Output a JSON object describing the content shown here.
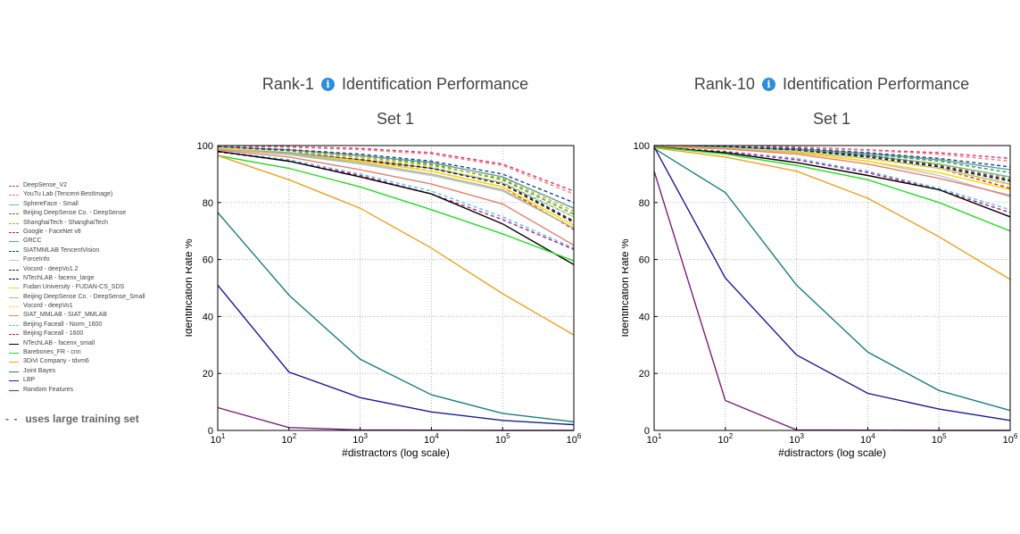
{
  "legend": {
    "items": [
      {
        "label": "DeepSense_V2",
        "color": "#e0347a",
        "dash": true
      },
      {
        "label": "YouTu Lab (Tencent-BestImage)",
        "color": "#f08080",
        "dash": true
      },
      {
        "label": "SphereFace - Small",
        "color": "#6baed6",
        "dash": false
      },
      {
        "label": "Beijing DeepSense Co. - DeepSense",
        "color": "#2ca02c",
        "dash": true
      },
      {
        "label": "ShanghaiTech - ShanghaiTech",
        "color": "#c8b400",
        "dash": true
      },
      {
        "label": "Google - FaceNet v8",
        "color": "#d62728",
        "dash": true
      },
      {
        "label": "GRCC",
        "color": "#5f9ea0",
        "dash": false
      },
      {
        "label": "SIATMMLAB TencentVision",
        "color": "#1f3f8f",
        "dash": true
      },
      {
        "label": "ForceInfo",
        "color": "#b0c4de",
        "dash": false
      },
      {
        "label": "Vocord - deepVo1.2",
        "color": "#333366",
        "dash": true
      },
      {
        "label": "NTechLAB - facenx_large",
        "color": "#111111",
        "dash": true
      },
      {
        "label": "Fudan University - FUDAN-CS_SDS",
        "color": "#ffd700",
        "dash": false
      },
      {
        "label": "Beijing DeepSense Co. - DeepSense_Small",
        "color": "#b8b878",
        "dash": false
      },
      {
        "label": "Vocord - deepVo1",
        "color": "#f5e050",
        "dash": true
      },
      {
        "label": "SIAT_MMLAB - SIAT_MMLAB",
        "color": "#e8806a",
        "dash": false
      },
      {
        "label": "Beijing Faceall - Norm_1600",
        "color": "#4fc3f7",
        "dash": true
      },
      {
        "label": "Beijing Faceall - 1600",
        "color": "#c71585",
        "dash": true
      },
      {
        "label": "NTechLAB - facenx_small",
        "color": "#000000",
        "dash": false
      },
      {
        "label": "Barebones_FR - cnn",
        "color": "#22dd22",
        "dash": false
      },
      {
        "label": "3DiVi Company - tdvm6",
        "color": "#f0a020",
        "dash": false
      },
      {
        "label": "Joint Bayes",
        "color": "#1a8080",
        "dash": false
      },
      {
        "label": "LBP",
        "color": "#1a1a9a",
        "dash": false
      },
      {
        "label": "Random Features",
        "color": "#7a1f7a",
        "dash": false
      }
    ],
    "note_dash": "- -",
    "note_text": "uses large training set"
  },
  "charts": [
    {
      "title_before": "Rank-1",
      "title_after": "Identification Performance",
      "subtitle": "Set 1",
      "info_icon": "info-icon"
    },
    {
      "title_before": "Rank-10",
      "title_after": "Identification Performance",
      "subtitle": "Set 1",
      "info_icon": "info-icon"
    }
  ],
  "chart_data": [
    {
      "type": "line",
      "title": "Rank-1 Identification Performance",
      "subtitle": "Set 1",
      "xlabel": "#distractors (log scale)",
      "ylabel": "Identification Rate %",
      "x_scale": "log",
      "x": [
        10,
        100,
        1000,
        10000,
        100000,
        1000000
      ],
      "x_tick_labels": [
        [
          "10",
          "1"
        ],
        [
          "10",
          "2"
        ],
        [
          "10",
          "3"
        ],
        [
          "10",
          "4"
        ],
        [
          "10",
          "5"
        ],
        [
          "10",
          "6"
        ]
      ],
      "y_ticks": [
        0,
        20,
        40,
        60,
        80,
        100
      ],
      "ylim": [
        0,
        100
      ],
      "grid": true,
      "series": [
        {
          "name": "DeepSense_V2",
          "color": "#e0347a",
          "dash": true,
          "values": [
            99.8,
            99.6,
            99.0,
            97.5,
            93.5,
            84.0
          ]
        },
        {
          "name": "YouTu Lab (Tencent-BestImage)",
          "color": "#f08080",
          "dash": true,
          "values": [
            99.7,
            99.4,
            98.6,
            97.0,
            93.0,
            83.0
          ]
        },
        {
          "name": "SphereFace - Small",
          "color": "#6baed6",
          "dash": false,
          "values": [
            99.0,
            97.5,
            95.0,
            92.0,
            87.0,
            75.0
          ]
        },
        {
          "name": "Beijing DeepSense Co. - DeepSense",
          "color": "#2ca02c",
          "dash": true,
          "values": [
            99.5,
            98.5,
            96.5,
            93.5,
            88.0,
            76.0
          ]
        },
        {
          "name": "ShanghaiTech - ShanghaiTech",
          "color": "#c8b400",
          "dash": true,
          "values": [
            99.4,
            98.2,
            96.0,
            93.0,
            88.5,
            77.0
          ]
        },
        {
          "name": "Google - FaceNet v8",
          "color": "#d62728",
          "dash": true,
          "values": [
            99.3,
            97.8,
            95.0,
            91.0,
            85.5,
            70.5
          ]
        },
        {
          "name": "GRCC",
          "color": "#5f9ea0",
          "dash": false,
          "values": [
            99.6,
            98.5,
            96.5,
            94.0,
            89.0,
            78.0
          ]
        },
        {
          "name": "SIATMMLAB TencentVision",
          "color": "#1f3f8f",
          "dash": true,
          "values": [
            99.5,
            98.6,
            97.0,
            94.5,
            90.0,
            80.0
          ]
        },
        {
          "name": "ForceInfo",
          "color": "#b0c4de",
          "dash": false,
          "values": [
            98.8,
            96.8,
            93.5,
            89.5,
            84.0,
            71.0
          ]
        },
        {
          "name": "Vocord - deepVo1.2",
          "color": "#333366",
          "dash": true,
          "values": [
            99.4,
            98.0,
            95.5,
            92.5,
            87.0,
            73.5
          ]
        },
        {
          "name": "NTechLAB - facenx_large",
          "color": "#111111",
          "dash": true,
          "values": [
            99.2,
            97.8,
            95.2,
            92.0,
            86.5,
            73.0
          ]
        },
        {
          "name": "Fudan University - FUDAN-CS_SDS",
          "color": "#ffd700",
          "dash": false,
          "values": [
            99.0,
            97.0,
            94.5,
            91.0,
            85.5,
            72.0
          ]
        },
        {
          "name": "Beijing DeepSense Co. - DeepSense_Small",
          "color": "#b8b878",
          "dash": false,
          "values": [
            98.8,
            97.0,
            94.0,
            90.0,
            84.5,
            71.0
          ]
        },
        {
          "name": "Vocord - deepVo1",
          "color": "#f5e050",
          "dash": true,
          "values": [
            99.2,
            97.8,
            95.5,
            92.5,
            87.0,
            75.0
          ]
        },
        {
          "name": "SIAT_MMLAB - SIAT_MMLAB",
          "color": "#e8806a",
          "dash": false,
          "values": [
            98.5,
            96.0,
            91.5,
            86.5,
            79.5,
            65.0
          ]
        },
        {
          "name": "Beijing Faceall - Norm_1600",
          "color": "#4fc3f7",
          "dash": true,
          "values": [
            98.0,
            95.0,
            90.0,
            84.0,
            75.0,
            64.0
          ]
        },
        {
          "name": "Beijing Faceall - 1600",
          "color": "#c71585",
          "dash": true,
          "values": [
            97.8,
            94.5,
            89.5,
            83.0,
            74.0,
            63.5
          ]
        },
        {
          "name": "NTechLAB - facenx_small",
          "color": "#000000",
          "dash": false,
          "values": [
            98.0,
            94.5,
            89.0,
            83.0,
            72.5,
            58.2
          ]
        },
        {
          "name": "Barebones_FR - cnn",
          "color": "#22dd22",
          "dash": false,
          "values": [
            96.5,
            92.0,
            85.5,
            77.5,
            69.0,
            59.5
          ]
        },
        {
          "name": "3DiVi Company - tdvm6",
          "color": "#f0a020",
          "dash": false,
          "values": [
            96.5,
            88.0,
            78.0,
            64.0,
            48.0,
            33.5
          ]
        },
        {
          "name": "Joint Bayes",
          "color": "#1a8080",
          "dash": false,
          "values": [
            76.5,
            47.5,
            25.0,
            12.5,
            6.0,
            3.0
          ]
        },
        {
          "name": "LBP",
          "color": "#1a1a9a",
          "dash": false,
          "values": [
            51.0,
            20.5,
            11.5,
            6.5,
            3.5,
            2.0
          ]
        },
        {
          "name": "Random Features",
          "color": "#7a1f7a",
          "dash": false,
          "values": [
            8.0,
            1.0,
            0.2,
            0.1,
            0.0,
            0.0
          ]
        }
      ]
    },
    {
      "type": "line",
      "title": "Rank-10 Identification Performance",
      "subtitle": "Set 1",
      "xlabel": "#distractors (log scale)",
      "ylabel": "Identification Rate %",
      "x_scale": "log",
      "x": [
        10,
        100,
        1000,
        10000,
        100000,
        1000000
      ],
      "x_tick_labels": [
        [
          "10",
          "1"
        ],
        [
          "10",
          "2"
        ],
        [
          "10",
          "3"
        ],
        [
          "10",
          "4"
        ],
        [
          "10",
          "5"
        ],
        [
          "10",
          "6"
        ]
      ],
      "y_ticks": [
        0,
        20,
        40,
        60,
        80,
        100
      ],
      "ylim": [
        0,
        100
      ],
      "grid": true,
      "series": [
        {
          "name": "DeepSense_V2",
          "color": "#e0347a",
          "dash": true,
          "values": [
            100,
            99.9,
            99.5,
            98.5,
            97.5,
            95.5
          ]
        },
        {
          "name": "YouTu Lab (Tencent-BestImage)",
          "color": "#f08080",
          "dash": true,
          "values": [
            100,
            99.8,
            99.3,
            98.3,
            97.0,
            94.5
          ]
        },
        {
          "name": "SphereFace - Small",
          "color": "#6baed6",
          "dash": false,
          "values": [
            99.9,
            99.5,
            98.5,
            96.5,
            93.5,
            89.0
          ]
        },
        {
          "name": "Beijing DeepSense Co. - DeepSense",
          "color": "#2ca02c",
          "dash": true,
          "values": [
            99.9,
            99.5,
            98.6,
            97.0,
            94.5,
            90.5
          ]
        },
        {
          "name": "ShanghaiTech - ShanghaiTech",
          "color": "#c8b400",
          "dash": true,
          "values": [
            99.9,
            99.4,
            98.3,
            96.5,
            93.5,
            88.5
          ]
        },
        {
          "name": "Google - FaceNet v8",
          "color": "#d62728",
          "dash": true,
          "values": [
            99.8,
            99.2,
            98.0,
            95.5,
            92.0,
            85.0
          ]
        },
        {
          "name": "GRCC",
          "color": "#5f9ea0",
          "dash": false,
          "values": [
            99.9,
            99.5,
            98.8,
            97.2,
            95.0,
            91.5
          ]
        },
        {
          "name": "SIATMMLAB TencentVision",
          "color": "#1f3f8f",
          "dash": true,
          "values": [
            99.9,
            99.6,
            99.0,
            97.5,
            95.5,
            92.5
          ]
        },
        {
          "name": "ForceInfo",
          "color": "#b0c4de",
          "dash": false,
          "values": [
            99.8,
            99.0,
            97.5,
            94.5,
            89.5,
            82.0
          ]
        },
        {
          "name": "Vocord - deepVo1.2",
          "color": "#333366",
          "dash": true,
          "values": [
            99.9,
            99.4,
            98.4,
            96.5,
            93.0,
            88.0
          ]
        },
        {
          "name": "NTechLAB - facenx_large",
          "color": "#111111",
          "dash": true,
          "values": [
            99.9,
            99.3,
            98.2,
            96.0,
            92.5,
            87.5
          ]
        },
        {
          "name": "Fudan University - FUDAN-CS_SDS",
          "color": "#ffd700",
          "dash": false,
          "values": [
            99.8,
            99.0,
            97.5,
            94.5,
            90.5,
            84.5
          ]
        },
        {
          "name": "Beijing DeepSense Co. - DeepSense_Small",
          "color": "#b8b878",
          "dash": false,
          "values": [
            99.8,
            99.0,
            97.8,
            95.5,
            92.0,
            86.5
          ]
        },
        {
          "name": "Vocord - deepVo1",
          "color": "#f5e050",
          "dash": true,
          "values": [
            99.9,
            99.2,
            98.0,
            95.5,
            92.0,
            86.0
          ]
        },
        {
          "name": "SIAT_MMLAB - SIAT_MMLAB",
          "color": "#e8806a",
          "dash": false,
          "values": [
            99.7,
            98.8,
            97.0,
            93.5,
            88.5,
            82.5
          ]
        },
        {
          "name": "Beijing Faceall - Norm_1600",
          "color": "#4fc3f7",
          "dash": true,
          "values": [
            99.6,
            98.0,
            95.5,
            91.0,
            85.0,
            77.5
          ]
        },
        {
          "name": "Beijing Faceall - 1600",
          "color": "#c71585",
          "dash": true,
          "values": [
            99.5,
            97.8,
            95.0,
            90.5,
            84.5,
            76.5
          ]
        },
        {
          "name": "NTechLAB - facenx_small",
          "color": "#000000",
          "dash": false,
          "values": [
            99.5,
            97.5,
            94.0,
            89.5,
            84.5,
            75.0
          ]
        },
        {
          "name": "Barebones_FR - cnn",
          "color": "#22dd22",
          "dash": false,
          "values": [
            99.5,
            97.0,
            93.0,
            88.0,
            80.0,
            70.0
          ]
        },
        {
          "name": "3DiVi Company - tdvm6",
          "color": "#f0a020",
          "dash": false,
          "values": [
            99.2,
            96.0,
            91.0,
            81.5,
            68.0,
            53.0
          ]
        },
        {
          "name": "Joint Bayes",
          "color": "#1a8080",
          "dash": false,
          "values": [
            99.0,
            83.5,
            51.0,
            27.5,
            14.0,
            7.0
          ]
        },
        {
          "name": "LBP",
          "color": "#1a1a9a",
          "dash": false,
          "values": [
            99.5,
            53.5,
            26.5,
            13.0,
            7.5,
            3.5
          ]
        },
        {
          "name": "Random Features",
          "color": "#7a1f7a",
          "dash": false,
          "values": [
            91.0,
            10.5,
            0.2,
            0.1,
            0.0,
            0.0
          ]
        }
      ]
    }
  ]
}
